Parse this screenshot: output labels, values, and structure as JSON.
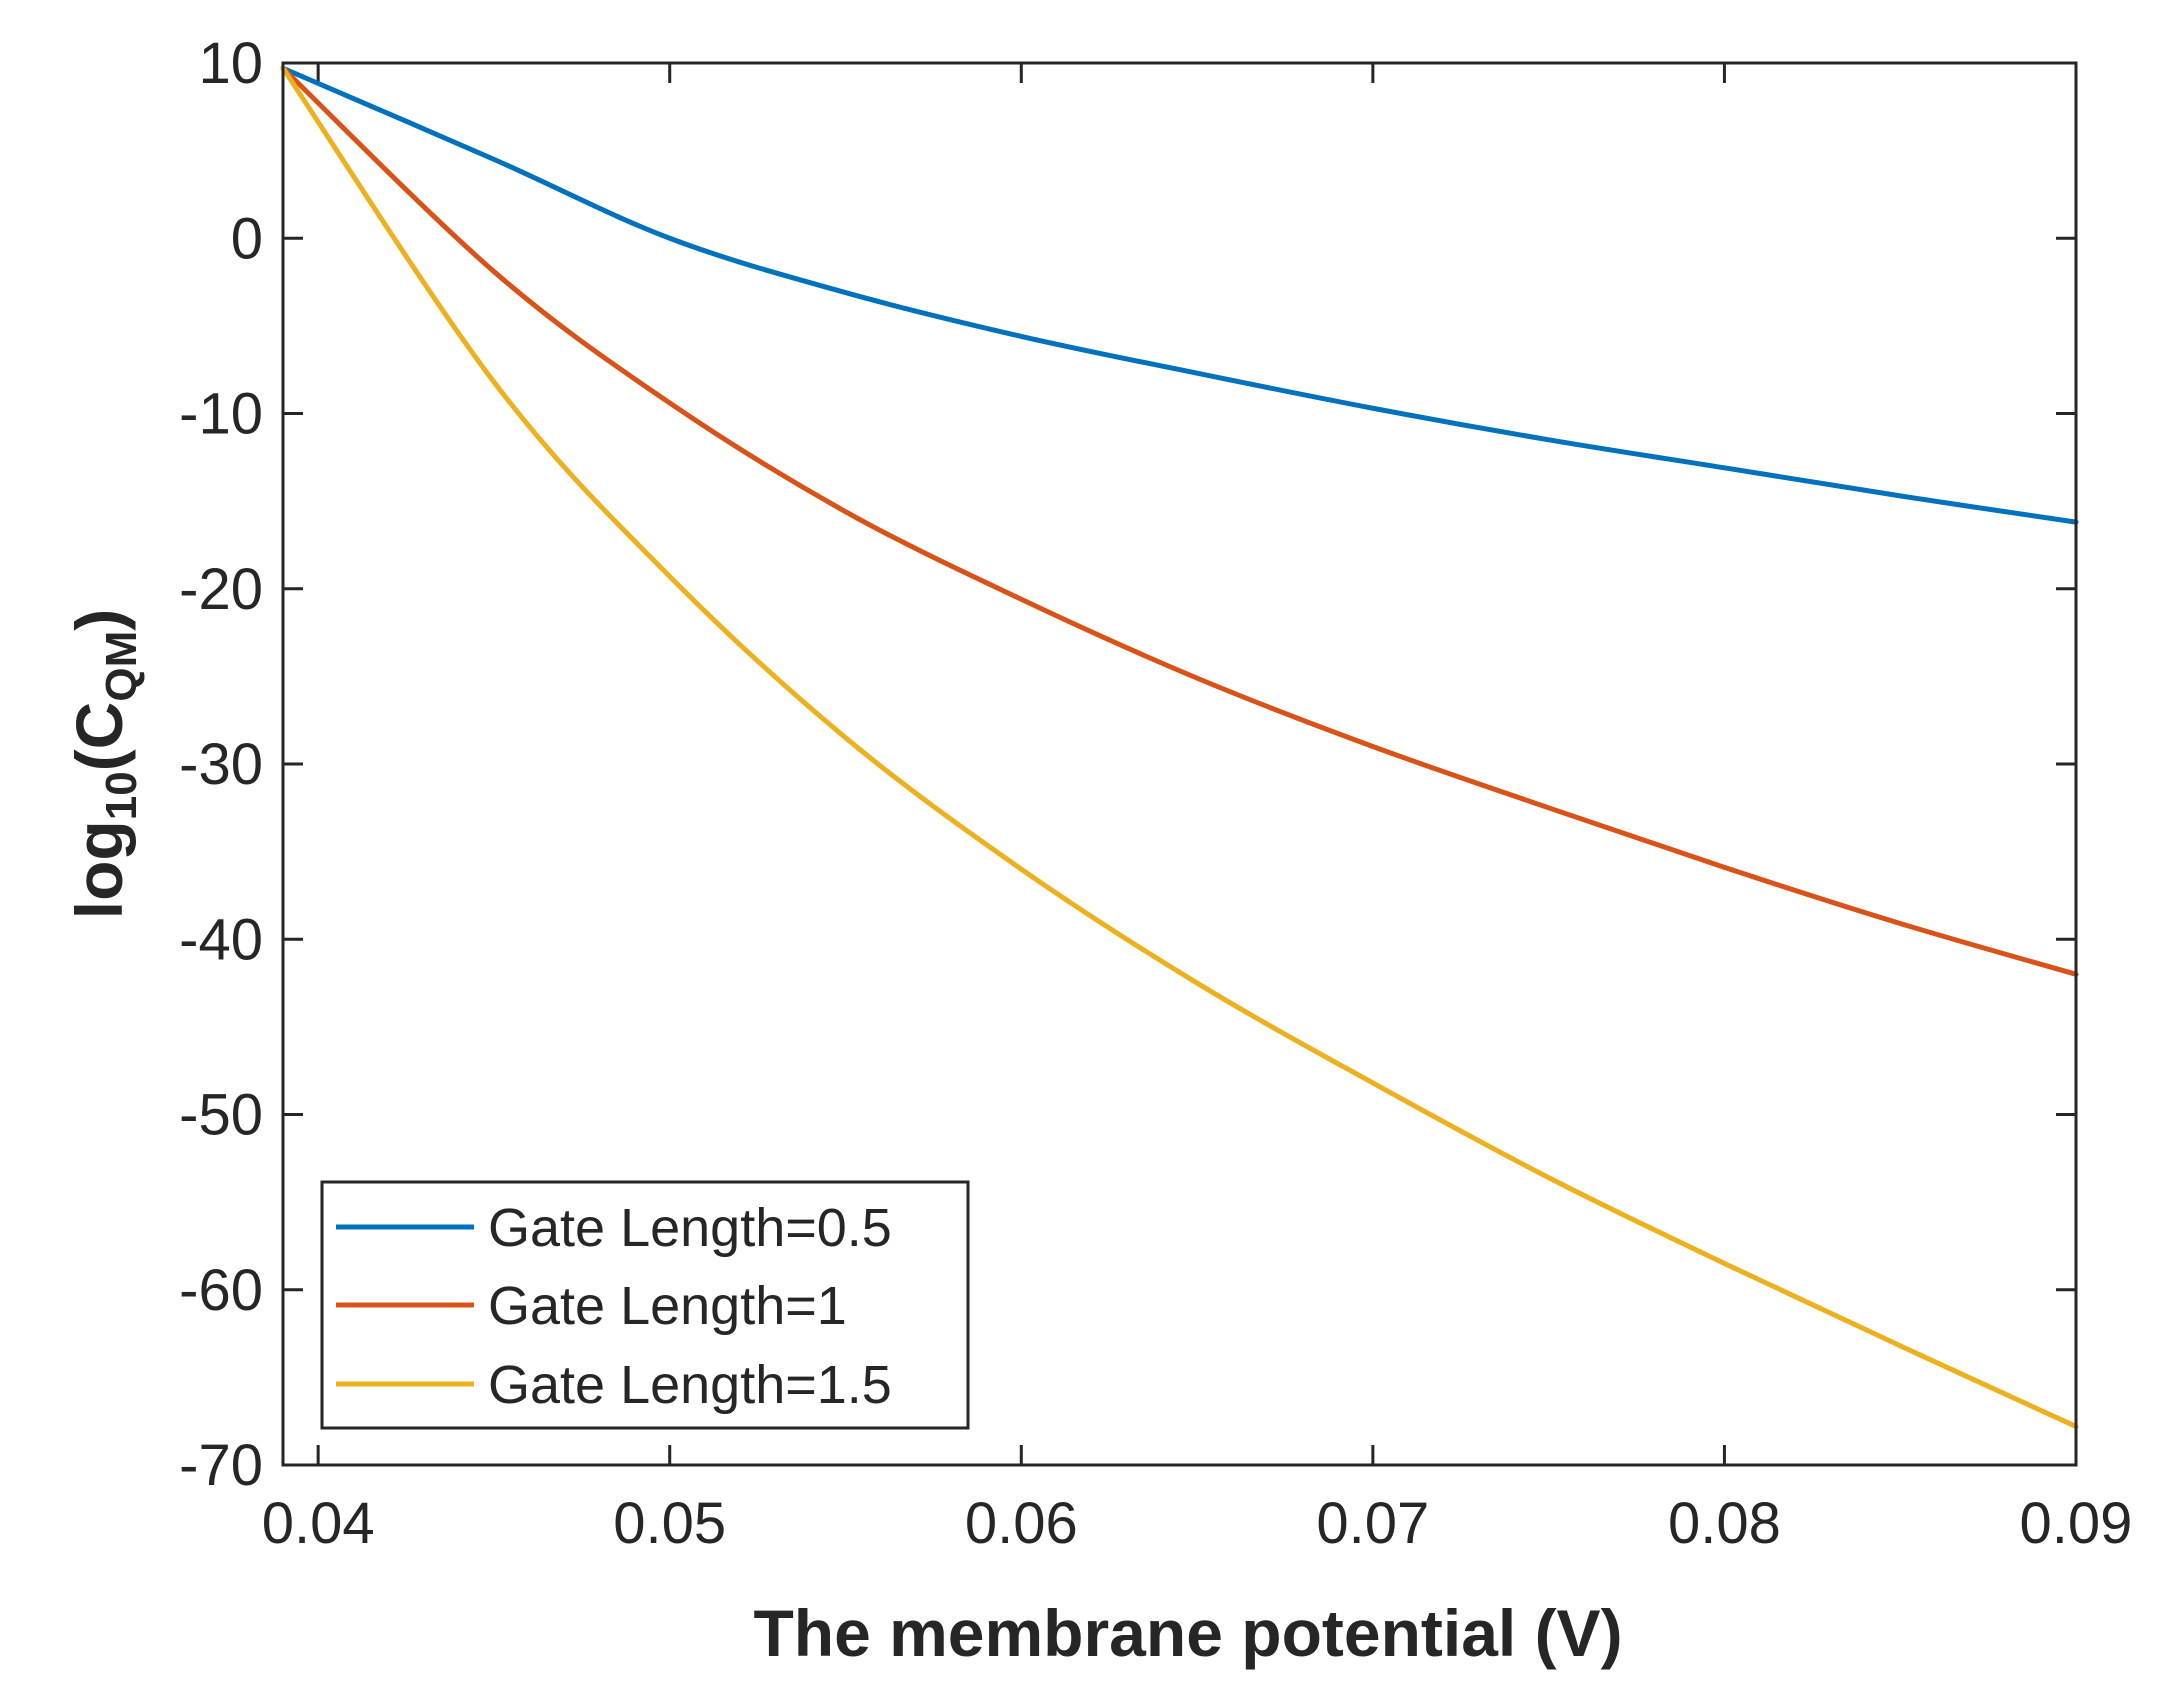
{
  "chart_data": {
    "type": "line",
    "title": "",
    "xlabel": "The membrane potential (V)",
    "ylabel_main": "log",
    "ylabel_sub": "10",
    "ylabel_paren_open": "(C",
    "ylabel_paren_sub": "QM",
    "ylabel_paren_close": ")",
    "xlim": [
      0.039,
      0.09
    ],
    "ylim": [
      -70,
      10
    ],
    "xticks": [
      0.04,
      0.05,
      0.06,
      0.07,
      0.08,
      0.09
    ],
    "xtick_labels": [
      "0.04",
      "0.05",
      "0.06",
      "0.07",
      "0.08",
      "0.09"
    ],
    "yticks": [
      10,
      0,
      -10,
      -20,
      -30,
      -40,
      -50,
      -60,
      -70
    ],
    "ytick_labels": [
      "10",
      "0",
      "-10",
      "-20",
      "-30",
      "-40",
      "-50",
      "-60",
      "-70"
    ],
    "grid": false,
    "legend_position": "bottom-left",
    "x": [
      0.039,
      0.045,
      0.05,
      0.055,
      0.06,
      0.065,
      0.07,
      0.075,
      0.08,
      0.085,
      0.09
    ],
    "series": [
      {
        "name": "Gate Length=0.5",
        "color": "#0072BD",
        "values": [
          9.7,
          4.5,
          0.0,
          -3.1,
          -5.6,
          -7.7,
          -9.7,
          -11.5,
          -13.1,
          -14.7,
          -16.2
        ]
      },
      {
        "name": "Gate Length=1",
        "color": "#D95319",
        "values": [
          9.7,
          -1.9,
          -9.4,
          -15.6,
          -20.6,
          -25.1,
          -29.0,
          -32.5,
          -35.9,
          -39.1,
          -42.0
        ]
      },
      {
        "name": "Gate Length=1.5",
        "color": "#EDB120",
        "values": [
          9.7,
          -8.2,
          -19.3,
          -28.5,
          -36.0,
          -42.5,
          -48.2,
          -53.6,
          -58.5,
          -63.2,
          -67.8
        ]
      }
    ]
  }
}
